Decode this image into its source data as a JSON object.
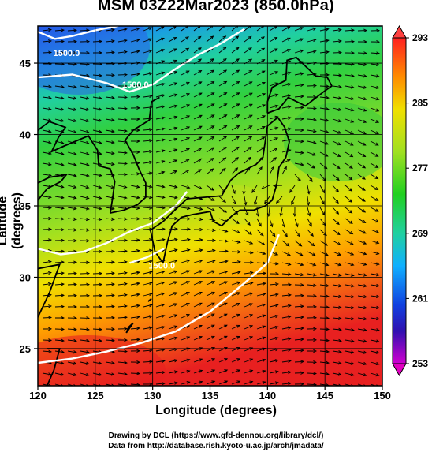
{
  "chart_data": {
    "type": "heatmap",
    "title": "MSM 03Z22Mar2023 (850.0hPa)",
    "xlabel": "Longitude (degrees)",
    "ylabel": "Latitude  (degrees)",
    "xlim": [
      120,
      150
    ],
    "ylim": [
      22.4,
      47.6
    ],
    "x_ticks": [
      120,
      125,
      130,
      135,
      140,
      145,
      150
    ],
    "y_ticks": [
      25,
      30,
      35,
      40,
      45
    ],
    "colorbar": {
      "min": 253,
      "max": 293,
      "tick_labels": [
        "293",
        "285",
        "277",
        "269",
        "261",
        "253"
      ],
      "tick_values": [
        293,
        285,
        277,
        269,
        261,
        253
      ]
    },
    "contour_labels": [
      "1500.0",
      "1500.0",
      "1500.0"
    ],
    "grid": true
  },
  "credits": {
    "line1": "Drawing by DCL (https://www.gfd-dennou.org/library/dcl/)",
    "line2": "Data from http://database.rish.kyoto-u.ac.jp/arch/jmadata/"
  },
  "colors": {
    "cold": "#1e50e0",
    "cyan": "#19c8c8",
    "green": "#20c820",
    "yellow": "#e6e600",
    "orange": "#ff8c00",
    "red": "#e61e1e",
    "magenta": "#c800c8"
  }
}
